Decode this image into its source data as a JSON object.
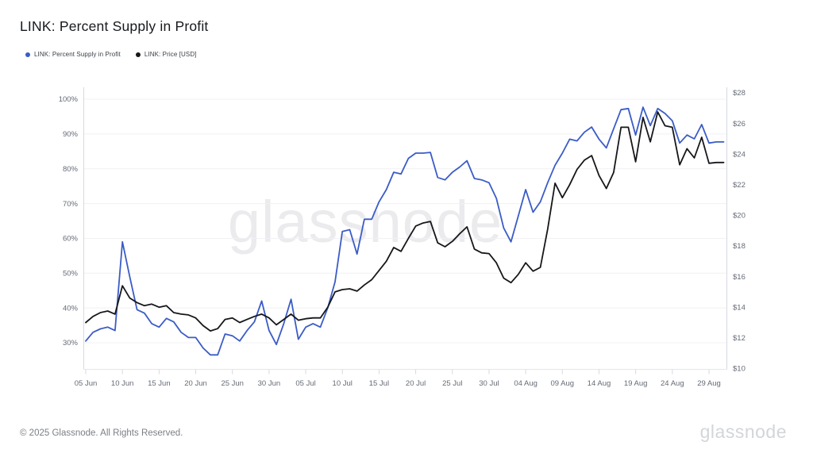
{
  "header": {
    "title": "LINK: Percent Supply in Profit"
  },
  "legend": [
    {
      "label": "LINK: Percent Supply in Profit",
      "color": "#3b5cc6"
    },
    {
      "label": "LINK: Price [USD]",
      "color": "#15171a"
    }
  ],
  "watermark_text": "glassnode",
  "footer": {
    "copyright": "© 2025 Glassnode. All Rights Reserved.",
    "logo_text": "glassnode"
  },
  "chart_data": {
    "type": "line",
    "title": "LINK: Percent Supply in Profit",
    "grid": "horizontal",
    "legend_position": "top-left",
    "x": [
      "05 Jun",
      "06 Jun",
      "07 Jun",
      "08 Jun",
      "09 Jun",
      "10 Jun",
      "11 Jun",
      "12 Jun",
      "13 Jun",
      "14 Jun",
      "15 Jun",
      "16 Jun",
      "17 Jun",
      "18 Jun",
      "19 Jun",
      "20 Jun",
      "21 Jun",
      "22 Jun",
      "23 Jun",
      "24 Jun",
      "25 Jun",
      "26 Jun",
      "27 Jun",
      "28 Jun",
      "29 Jun",
      "30 Jun",
      "01 Jul",
      "02 Jul",
      "03 Jul",
      "04 Jul",
      "05 Jul",
      "06 Jul",
      "07 Jul",
      "08 Jul",
      "09 Jul",
      "10 Jul",
      "11 Jul",
      "12 Jul",
      "13 Jul",
      "14 Jul",
      "15 Jul",
      "16 Jul",
      "17 Jul",
      "18 Jul",
      "19 Jul",
      "20 Jul",
      "21 Jul",
      "22 Jul",
      "23 Jul",
      "24 Jul",
      "25 Jul",
      "26 Jul",
      "27 Jul",
      "28 Jul",
      "29 Jul",
      "30 Jul",
      "31 Jul",
      "01 Aug",
      "02 Aug",
      "03 Aug",
      "04 Aug",
      "05 Aug",
      "06 Aug",
      "07 Aug",
      "08 Aug",
      "09 Aug",
      "10 Aug",
      "11 Aug",
      "12 Aug",
      "13 Aug",
      "14 Aug",
      "15 Aug",
      "16 Aug",
      "17 Aug",
      "18 Aug",
      "19 Aug",
      "20 Aug",
      "21 Aug",
      "22 Aug",
      "23 Aug",
      "24 Aug",
      "25 Aug",
      "26 Aug",
      "27 Aug",
      "28 Aug",
      "29 Aug",
      "30 Aug",
      "31 Aug"
    ],
    "x_tick_labels": [
      "05 Jun",
      "10 Jun",
      "15 Jun",
      "20 Jun",
      "25 Jun",
      "30 Jun",
      "05 Jul",
      "10 Jul",
      "15 Jul",
      "20 Jul",
      "25 Jul",
      "30 Jul",
      "04 Aug",
      "09 Aug",
      "14 Aug",
      "19 Aug",
      "24 Aug",
      "29 Aug"
    ],
    "x_tick_step": 5,
    "left_axis": {
      "unit": "%",
      "min": 30,
      "max": 100,
      "tick_values": [
        100,
        90,
        80,
        70,
        60,
        50,
        40,
        30
      ],
      "tick_labels": [
        "100%",
        "90%",
        "80%",
        "70%",
        "60%",
        "50%",
        "40%",
        "30%"
      ]
    },
    "right_axis": {
      "unit": "USD",
      "min": 10,
      "max": 28,
      "tick_values": [
        28,
        26,
        24,
        22,
        20,
        18,
        16,
        14,
        12,
        10
      ],
      "tick_labels": [
        "$28",
        "$26",
        "$24",
        "$22",
        "$20",
        "$18",
        "$16",
        "$14",
        "$12",
        "$10"
      ]
    },
    "series": [
      {
        "name": "LINK: Percent Supply in Profit",
        "axis": "left",
        "color": "#3b5cc6",
        "values": [
          30.5,
          33,
          34,
          34.5,
          33.5,
          59,
          49,
          39.5,
          38.5,
          35.5,
          34.5,
          37,
          36,
          33,
          31.5,
          31.5,
          28.5,
          26.5,
          26.5,
          32.5,
          32,
          30.5,
          33.5,
          36,
          42,
          33.5,
          29.5,
          35.5,
          42.5,
          31,
          34.5,
          35.5,
          34.5,
          40,
          47.5,
          62,
          62.5,
          55.5,
          65.5,
          65.5,
          70.5,
          74,
          79,
          78.5,
          83,
          84.5,
          84.5,
          84.7,
          77.5,
          76.8,
          79,
          80.5,
          82.3,
          77.2,
          76.8,
          76,
          71.5,
          63,
          59,
          66.5,
          74,
          67.5,
          70.5,
          76,
          81,
          84.5,
          88.5,
          88,
          90.5,
          92,
          88.5,
          86,
          91.5,
          97,
          97.3,
          89.7,
          97.7,
          92.4,
          97.3,
          95.9,
          93.8,
          87.4,
          89.7,
          88.6,
          92.7,
          87.4,
          87.7,
          87.7
        ]
      },
      {
        "name": "LINK: Price [USD]",
        "axis": "right",
        "color": "#15171a",
        "values": [
          13.0,
          13.4,
          13.65,
          13.75,
          13.55,
          15.4,
          14.6,
          14.3,
          14.1,
          14.2,
          14.0,
          14.1,
          13.65,
          13.55,
          13.5,
          13.3,
          12.8,
          12.45,
          12.6,
          13.2,
          13.3,
          13.0,
          13.2,
          13.4,
          13.55,
          13.3,
          12.85,
          13.2,
          13.55,
          13.15,
          13.25,
          13.3,
          13.3,
          14.0,
          15.0,
          15.15,
          15.2,
          15.05,
          15.45,
          15.8,
          16.4,
          17.0,
          17.9,
          17.65,
          18.5,
          19.3,
          19.5,
          19.6,
          18.2,
          17.95,
          18.3,
          18.8,
          19.25,
          17.8,
          17.55,
          17.5,
          16.9,
          15.9,
          15.6,
          16.15,
          16.9,
          16.35,
          16.6,
          19.1,
          22.1,
          21.15,
          22.0,
          23.0,
          23.6,
          23.9,
          22.6,
          21.75,
          22.8,
          25.75,
          25.75,
          23.5,
          26.4,
          24.8,
          26.75,
          25.85,
          25.75,
          23.3,
          24.35,
          23.75,
          25.1,
          23.4,
          23.45,
          23.45
        ]
      }
    ]
  },
  "colors": {
    "gridline": "#f0f1f4",
    "axis_line": "#d5dae0",
    "bottom_line": "#e4e7eb",
    "tick_text": "#646b76"
  }
}
